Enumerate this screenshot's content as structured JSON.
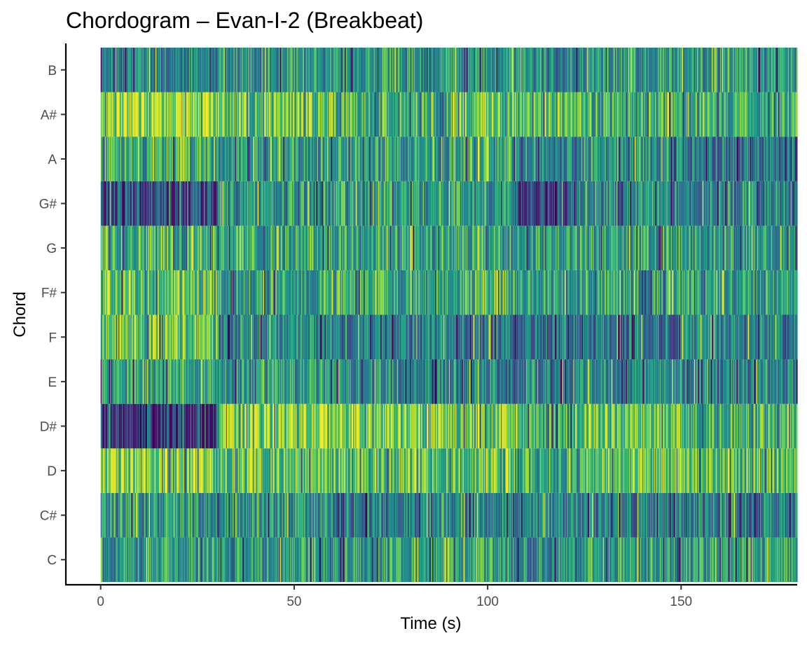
{
  "chart_data": {
    "type": "heatmap",
    "title": "Chordogram – Evan-I-2 (Breakbeat)",
    "xlabel": "Time (s)",
    "ylabel": "Chord",
    "xlim": [
      -9,
      180
    ],
    "x_ticks": [
      0,
      50,
      100,
      150
    ],
    "y_categories": [
      "C",
      "C#",
      "D",
      "D#",
      "E",
      "F",
      "F#",
      "G",
      "G#",
      "A",
      "A#",
      "B"
    ],
    "time_range": [
      0,
      180
    ],
    "color_scale": "viridis",
    "grid": false,
    "legend": "none",
    "segments": [
      {
        "start": 0,
        "end": 30,
        "levels": [
          0.55,
          0.55,
          0.78,
          0.18,
          0.55,
          0.72,
          0.72,
          0.68,
          0.28,
          0.6,
          0.85,
          0.45
        ]
      },
      {
        "start": 30,
        "end": 60,
        "levels": [
          0.55,
          0.5,
          0.72,
          0.82,
          0.55,
          0.45,
          0.55,
          0.62,
          0.55,
          0.55,
          0.75,
          0.55
        ]
      },
      {
        "start": 60,
        "end": 90,
        "levels": [
          0.55,
          0.45,
          0.72,
          0.8,
          0.5,
          0.42,
          0.62,
          0.6,
          0.58,
          0.55,
          0.65,
          0.55
        ]
      },
      {
        "start": 90,
        "end": 107,
        "levels": [
          0.55,
          0.45,
          0.72,
          0.72,
          0.45,
          0.42,
          0.62,
          0.58,
          0.55,
          0.6,
          0.75,
          0.55
        ]
      },
      {
        "start": 107,
        "end": 125,
        "levels": [
          0.5,
          0.45,
          0.62,
          0.62,
          0.45,
          0.4,
          0.55,
          0.55,
          0.28,
          0.45,
          0.72,
          0.5
        ]
      },
      {
        "start": 125,
        "end": 150,
        "levels": [
          0.55,
          0.45,
          0.7,
          0.72,
          0.5,
          0.42,
          0.58,
          0.58,
          0.5,
          0.5,
          0.62,
          0.55
        ]
      },
      {
        "start": 150,
        "end": 180,
        "levels": [
          0.55,
          0.45,
          0.68,
          0.65,
          0.48,
          0.45,
          0.55,
          0.55,
          0.48,
          0.42,
          0.62,
          0.55
        ]
      }
    ]
  }
}
